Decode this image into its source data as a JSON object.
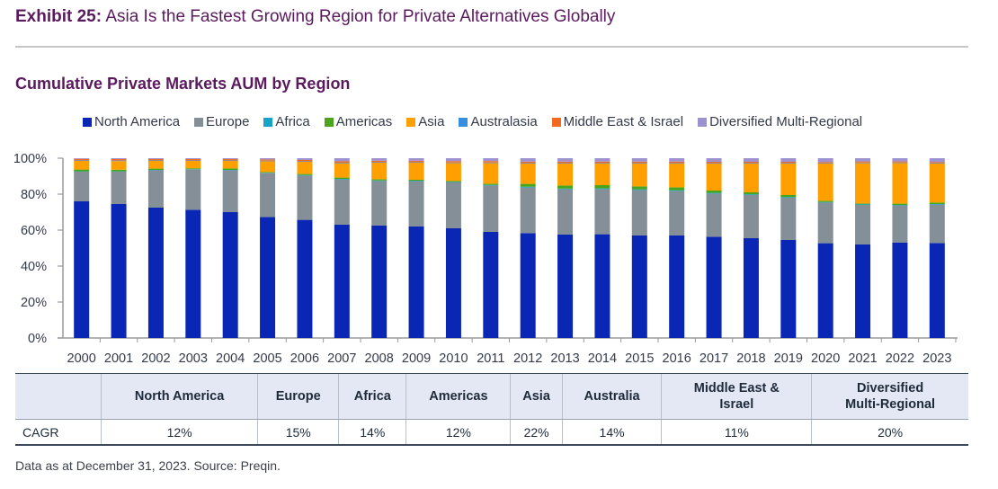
{
  "header": {
    "exhibit_label": "Exhibit 25:",
    "exhibit_title": "Asia Is the Fastest Growing Region for Private Alternatives Globally"
  },
  "chart_data": {
    "type": "bar",
    "stacked": true,
    "title": "Cumulative Private Markets AUM by Region",
    "xlabel": "",
    "ylabel": "",
    "ylim": [
      0,
      100
    ],
    "yticks": [
      "0%",
      "20%",
      "40%",
      "60%",
      "80%",
      "100%"
    ],
    "legend_position": "top",
    "categories": [
      "2000",
      "2001",
      "2002",
      "2003",
      "2004",
      "2005",
      "2006",
      "2007",
      "2008",
      "2009",
      "2010",
      "2011",
      "2012",
      "2013",
      "2014",
      "2015",
      "2016",
      "2017",
      "2018",
      "2019",
      "2020",
      "2021",
      "2022",
      "2023"
    ],
    "series": [
      {
        "name": "North America",
        "color": "#0a26b5",
        "values": [
          76.0,
          74.5,
          72.5,
          71.3,
          70.0,
          67.3,
          65.7,
          63.0,
          62.5,
          62.0,
          61.0,
          59.0,
          58.3,
          57.5,
          57.7,
          57.0,
          57.0,
          56.3,
          55.5,
          54.5,
          52.7,
          52.0,
          53.0,
          52.8
        ]
      },
      {
        "name": "Europe",
        "color": "#858f98",
        "values": [
          16.5,
          18.0,
          20.8,
          22.4,
          23.3,
          24.4,
          24.6,
          25.2,
          24.8,
          25.2,
          25.5,
          25.8,
          25.4,
          25.2,
          25.1,
          25.3,
          24.8,
          24.0,
          24.0,
          23.5,
          22.6,
          22.0,
          20.7,
          21.4
        ]
      },
      {
        "name": "Africa",
        "color": "#1aa3c8",
        "values": [
          0.2,
          0.2,
          0.2,
          0.2,
          0.2,
          0.2,
          0.3,
          0.3,
          0.3,
          0.3,
          0.3,
          0.3,
          0.4,
          0.4,
          0.4,
          0.4,
          0.4,
          0.4,
          0.4,
          0.4,
          0.3,
          0.3,
          0.3,
          0.3
        ]
      },
      {
        "name": "Americas",
        "color": "#4aa51c",
        "values": [
          1.0,
          0.9,
          0.7,
          0.5,
          0.8,
          0.4,
          0.6,
          0.7,
          0.7,
          0.5,
          0.5,
          0.7,
          1.6,
          1.7,
          1.8,
          1.6,
          1.6,
          1.3,
          1.1,
          1.1,
          0.7,
          0.5,
          0.7,
          0.8
        ]
      },
      {
        "name": "Asia",
        "color": "#ffa000",
        "values": [
          4.8,
          4.8,
          4.3,
          4.1,
          4.2,
          6.0,
          6.8,
          8.0,
          9.2,
          9.5,
          10.0,
          11.5,
          11.3,
          12.2,
          12.0,
          12.7,
          13.2,
          15.0,
          16.0,
          17.5,
          20.7,
          22.5,
          22.6,
          21.7
        ]
      },
      {
        "name": "Australasia",
        "color": "#3a8ee0",
        "values": [
          0.3,
          0.3,
          0.3,
          0.3,
          0.3,
          0.3,
          0.3,
          0.3,
          0.3,
          0.3,
          0.3,
          0.3,
          0.3,
          0.3,
          0.3,
          0.3,
          0.3,
          0.3,
          0.3,
          0.3,
          0.3,
          0.3,
          0.3,
          0.3
        ]
      },
      {
        "name": "Middle East & Israel",
        "color": "#f06a21",
        "values": [
          0.8,
          0.8,
          0.7,
          0.7,
          0.7,
          0.7,
          0.7,
          0.8,
          0.8,
          0.8,
          0.8,
          0.8,
          0.8,
          0.8,
          0.8,
          0.8,
          0.8,
          0.7,
          0.7,
          0.7,
          0.6,
          0.6,
          0.6,
          0.6
        ]
      },
      {
        "name": "Diversified Multi-Regional",
        "color": "#9b92cf",
        "values": [
          0.4,
          0.5,
          0.5,
          0.5,
          0.5,
          0.7,
          1.0,
          1.7,
          1.4,
          1.4,
          1.6,
          1.6,
          1.9,
          1.9,
          1.9,
          1.9,
          1.9,
          2.0,
          2.0,
          2.0,
          2.1,
          1.8,
          1.8,
          2.1
        ]
      }
    ]
  },
  "table": {
    "row_label": "CAGR",
    "columns": [
      {
        "header": [
          "North America"
        ],
        "value": "12%"
      },
      {
        "header": [
          "Europe"
        ],
        "value": "15%"
      },
      {
        "header": [
          "Africa"
        ],
        "value": "14%"
      },
      {
        "header": [
          "Americas"
        ],
        "value": "12%"
      },
      {
        "header": [
          "Asia"
        ],
        "value": "22%"
      },
      {
        "header": [
          "Australia"
        ],
        "value": "14%"
      },
      {
        "header": [
          "Middle East &",
          "Israel"
        ],
        "value": "11%"
      },
      {
        "header": [
          "Diversified",
          "Multi-Regional"
        ],
        "value": "20%"
      }
    ]
  },
  "footer": {
    "source": "Data as at December 31, 2023. Source: Preqin."
  }
}
